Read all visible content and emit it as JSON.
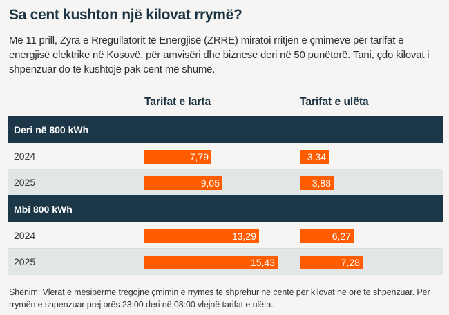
{
  "title": "Sa cent kushton një kilovat rrymë?",
  "intro": "Më 11 prill, Zyra e Rregullatorit të Energjisë (ZRRE) miratoi rritjen e çmimeve për tarifat e energjisë elektrike në Kosovë, për amvisëri dhe biznese deri në 50 punëtorë. Tani, çdo kilovat i shpenzuar do të kushtojë pak cent më shumë.",
  "note": "Shënim: Vlerat e mësipërme tregojnë çmimin e rrymës të shprehur në centë për kilovat në orë të shpenzuar. Për rrymën e shpenzuar prej orës 23:00 deri në 08:00 vlejnë tarifat e ulëta.",
  "colors": {
    "bar": "#ff5c00",
    "group_header": "#1c3748"
  },
  "chart_data": {
    "type": "bar",
    "title": "Sa cent kushton një kilovat rrymë?",
    "columns": [
      "Tarifat e larta",
      "Tarifat e ulëta"
    ],
    "unit": "cent/kWh",
    "groups": [
      {
        "label": "Deri në 800 kWh",
        "rows": [
          {
            "year": "2024",
            "values": [
              7.79,
              3.34
            ],
            "labels": [
              "7,79",
              "3,34"
            ]
          },
          {
            "year": "2025",
            "values": [
              9.05,
              3.88
            ],
            "labels": [
              "9,05",
              "3,88"
            ]
          }
        ]
      },
      {
        "label": "Mbi 800 kWh",
        "rows": [
          {
            "year": "2024",
            "values": [
              13.29,
              6.27
            ],
            "labels": [
              "13,29",
              "6,27"
            ]
          },
          {
            "year": "2025",
            "values": [
              15.43,
              7.28
            ],
            "labels": [
              "15,43",
              "7,28"
            ]
          }
        ]
      }
    ]
  }
}
